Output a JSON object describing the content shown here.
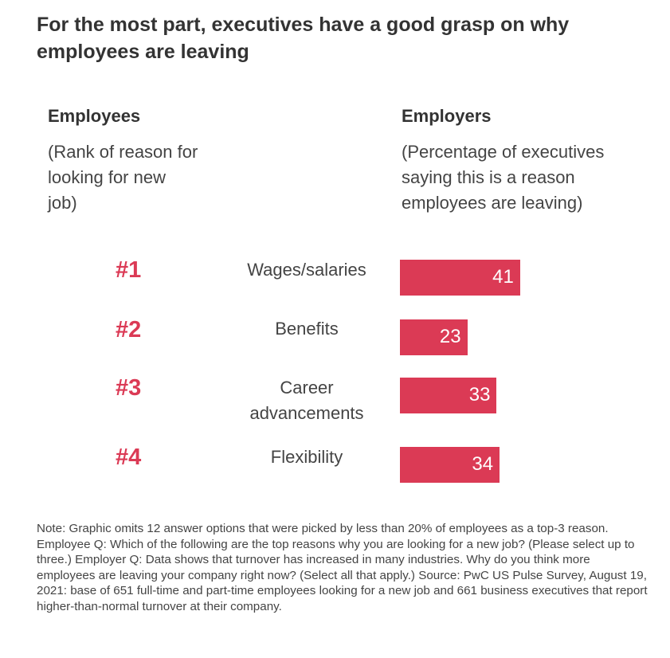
{
  "chart_data": {
    "type": "bar",
    "title": "For the most part, executives have a good grasp on why employees are leaving",
    "left_header": "Employees",
    "left_subheader": "(Rank of reason for looking for new job)",
    "right_header": "Employers",
    "right_subheader": "(Percentage of executives saying this is a reason employees are leaving)",
    "ranks": [
      "#1",
      "#2",
      "#3",
      "#4"
    ],
    "categories": [
      "Wages/salaries",
      "Benefits",
      "Career advancements",
      "Flexibility"
    ],
    "values": [
      41,
      23,
      33,
      34
    ],
    "bar_color": "#db3a55",
    "orientation": "horizontal",
    "grid": false,
    "note": "Note: Graphic omits 12 answer options that were picked by less than 20% of employees as a top-3 reason. Employee Q: Which of the following are the top reasons why you are looking for a new job? (Please select up to three.) Employer Q: Data shows that turnover has increased in many industries. Why do you think more employees are leaving your company right now? (Select all that apply.) Source: PwC US Pulse Survey, August 19, 2021: base of 651 full-time and part-time employees looking for a new job and 661 business executives that report higher-than-normal turnover at their company."
  }
}
